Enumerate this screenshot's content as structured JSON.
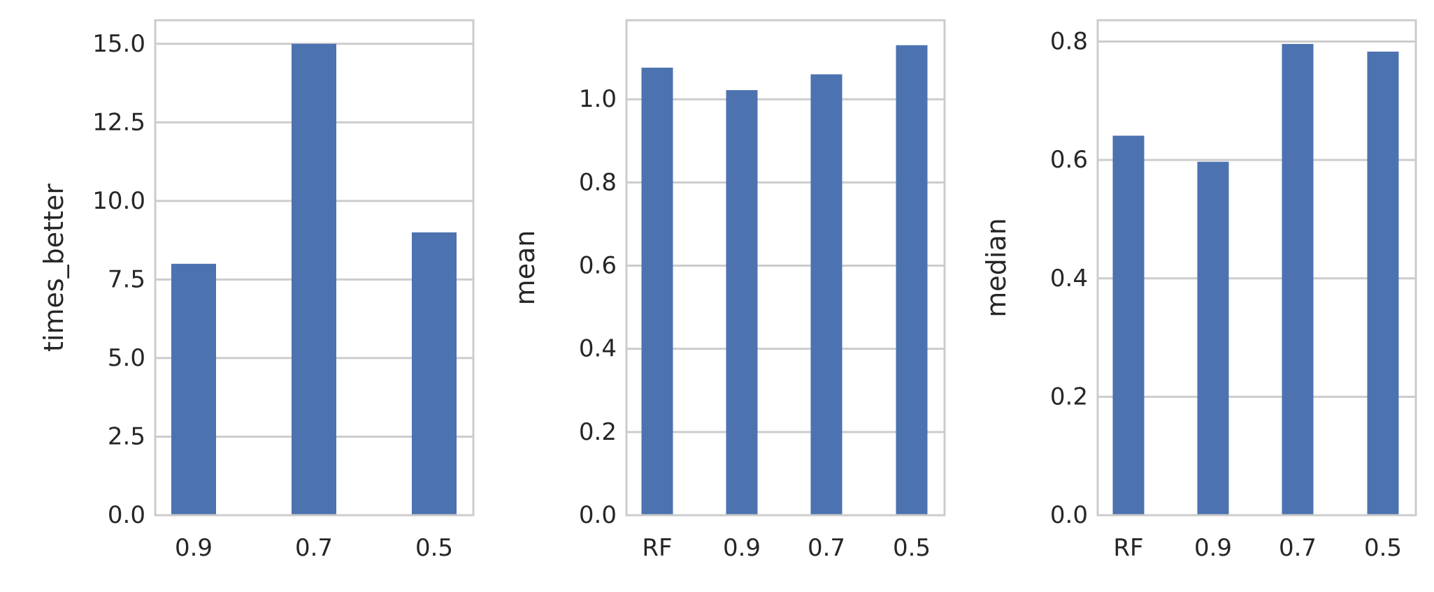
{
  "colors": {
    "bar": "#4c72b0",
    "grid": "#cccccc",
    "frame": "#cccccc",
    "text": "#262626",
    "background": "#ffffff"
  },
  "chart_data": [
    {
      "type": "bar",
      "categories": [
        "0.9",
        "0.7",
        "0.5"
      ],
      "values": [
        8,
        15,
        9
      ],
      "ylabel": "times_better",
      "xlabel": "",
      "ylim": [
        0,
        15.75
      ],
      "yticks": [
        0,
        2.5,
        5,
        7.5,
        10,
        12.5,
        15
      ],
      "ytick_labels": [
        "0.0",
        "2.5",
        "5.0",
        "7.5",
        "10.0",
        "12.5",
        "15.0"
      ],
      "grid": "y"
    },
    {
      "type": "bar",
      "categories": [
        "RF",
        "0.9",
        "0.7",
        "0.5"
      ],
      "values": [
        1.076,
        1.022,
        1.06,
        1.13
      ],
      "ylabel": "mean",
      "xlabel": "",
      "ylim": [
        0,
        1.19
      ],
      "yticks": [
        0,
        0.2,
        0.4,
        0.6,
        0.8,
        1.0
      ],
      "ytick_labels": [
        "0.0",
        "0.2",
        "0.4",
        "0.6",
        "0.8",
        "1.0"
      ],
      "grid": "y"
    },
    {
      "type": "bar",
      "categories": [
        "RF",
        "0.9",
        "0.7",
        "0.5"
      ],
      "values": [
        0.641,
        0.597,
        0.796,
        0.783
      ],
      "ylabel": "median",
      "xlabel": "",
      "ylim": [
        0,
        0.836
      ],
      "yticks": [
        0,
        0.2,
        0.4,
        0.6,
        0.8
      ],
      "ytick_labels": [
        "0.0",
        "0.2",
        "0.4",
        "0.6",
        "0.8"
      ],
      "grid": "y"
    }
  ]
}
